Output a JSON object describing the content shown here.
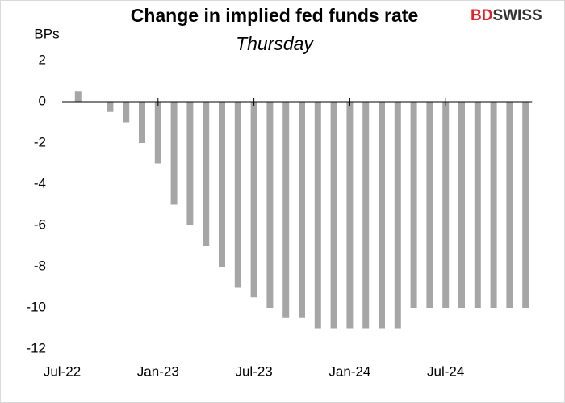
{
  "chart_data": {
    "type": "bar",
    "title": "Change in implied fed funds rate",
    "subtitle": "Thursday",
    "y_axis_label": "BPs",
    "logo": {
      "part1": "BD",
      "part2": "SWISS"
    },
    "categories": [
      "Jul-22",
      null,
      null,
      null,
      null,
      null,
      "Jan-23",
      null,
      null,
      null,
      null,
      null,
      "Jul-23",
      null,
      null,
      null,
      null,
      null,
      "Jan-24",
      null,
      null,
      null,
      null,
      null,
      "Jul-24",
      null,
      null,
      null,
      null,
      null
    ],
    "values": [
      0,
      0.5,
      0,
      -0.5,
      -1,
      -2,
      -3,
      -5,
      -6,
      -7,
      -8,
      -9,
      -9.5,
      -10,
      -10.5,
      -10.5,
      -11,
      -11,
      -11,
      -11,
      -11,
      -11,
      -10,
      -10,
      -10,
      -10,
      -10,
      -10,
      -10,
      -10
    ],
    "color": "#a6a6a6",
    "ylim": [
      -12,
      2
    ],
    "yticks": [
      2,
      0,
      -2,
      -4,
      -6,
      -8,
      -10,
      -12
    ],
    "grid": false
  }
}
